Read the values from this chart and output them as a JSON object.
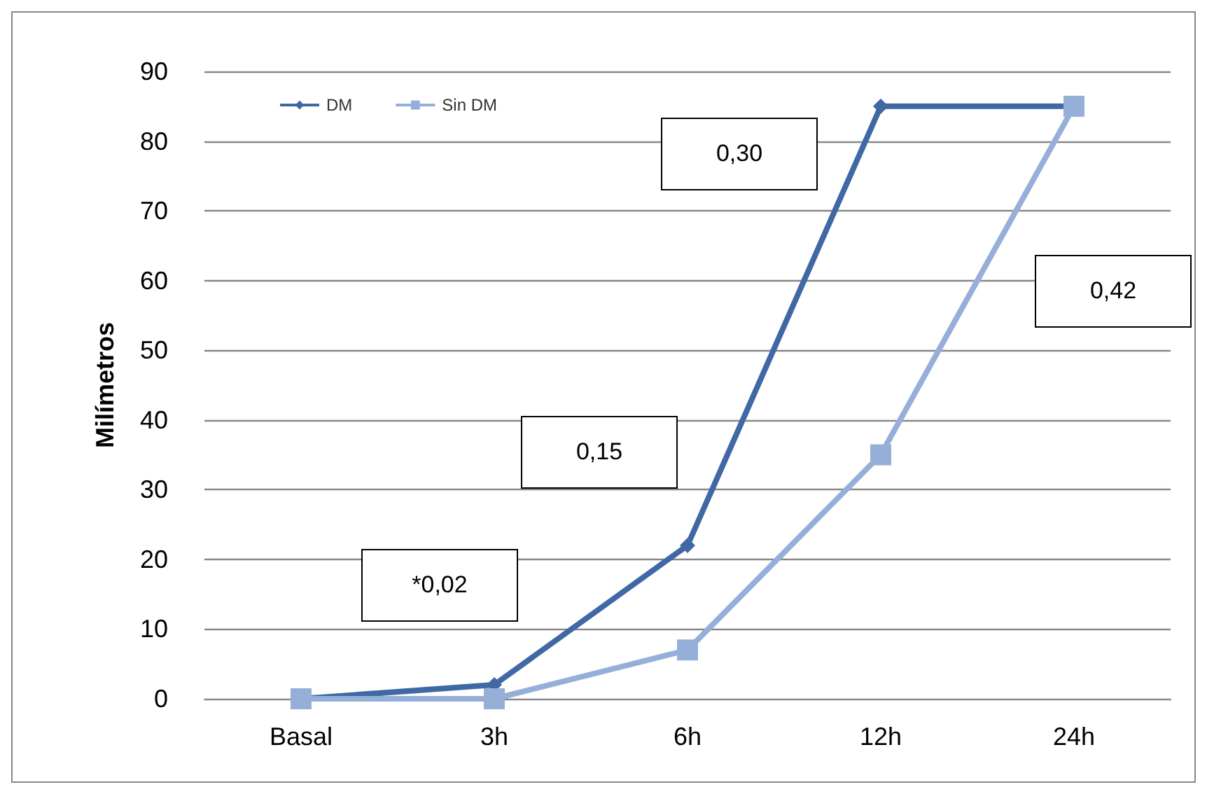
{
  "chart_data": {
    "type": "line",
    "ylabel": "Milímetros",
    "categories": [
      "Basal",
      "3h",
      "6h",
      "12h",
      "24h"
    ],
    "series": [
      {
        "name": "DM",
        "color": "#3f68a4",
        "marker": "diamond",
        "values": [
          0,
          2,
          22,
          85,
          85
        ]
      },
      {
        "name": "Sin DM",
        "color": "#95afd8",
        "marker": "square",
        "values": [
          0,
          0,
          7,
          35,
          85
        ]
      }
    ],
    "ylim": [
      0,
      90
    ],
    "yticks": [
      0,
      10,
      20,
      30,
      40,
      50,
      60,
      70,
      80,
      90
    ],
    "grid": "y",
    "legend": "top left",
    "annotations": [
      "*0,02",
      "0,15",
      "0,30",
      "0,42"
    ]
  }
}
